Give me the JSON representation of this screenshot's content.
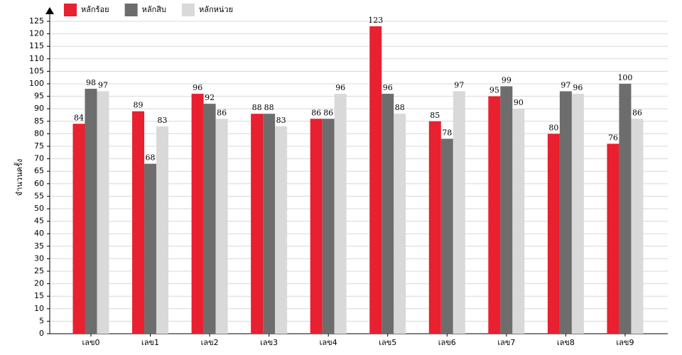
{
  "chart_data": {
    "type": "bar",
    "y_label": "จำนวนครั้ง",
    "categories": [
      "เลข0",
      "เลข1",
      "เลข2",
      "เลข3",
      "เลข4",
      "เลข5",
      "เลข6",
      "เลข7",
      "เลข8",
      "เลข9"
    ],
    "series": [
      {
        "name": "หลักร้อย",
        "color": "#e8202f",
        "values": [
          84,
          89,
          96,
          88,
          86,
          123,
          85,
          95,
          80,
          76
        ]
      },
      {
        "name": "หลักสิบ",
        "color": "#6d6d6d",
        "values": [
          98,
          68,
          92,
          88,
          86,
          96,
          78,
          99,
          97,
          100
        ]
      },
      {
        "name": "หลักหน่วย",
        "color": "#d9d9d9",
        "values": [
          97,
          83,
          86,
          83,
          96,
          88,
          97,
          90,
          96,
          86
        ]
      }
    ],
    "ylim": [
      0,
      125
    ],
    "yticks": [
      0,
      5,
      10,
      15,
      20,
      25,
      30,
      35,
      40,
      45,
      50,
      55,
      60,
      65,
      70,
      75,
      80,
      85,
      90,
      95,
      100,
      105,
      110,
      115,
      120,
      125
    ],
    "grid": true
  }
}
